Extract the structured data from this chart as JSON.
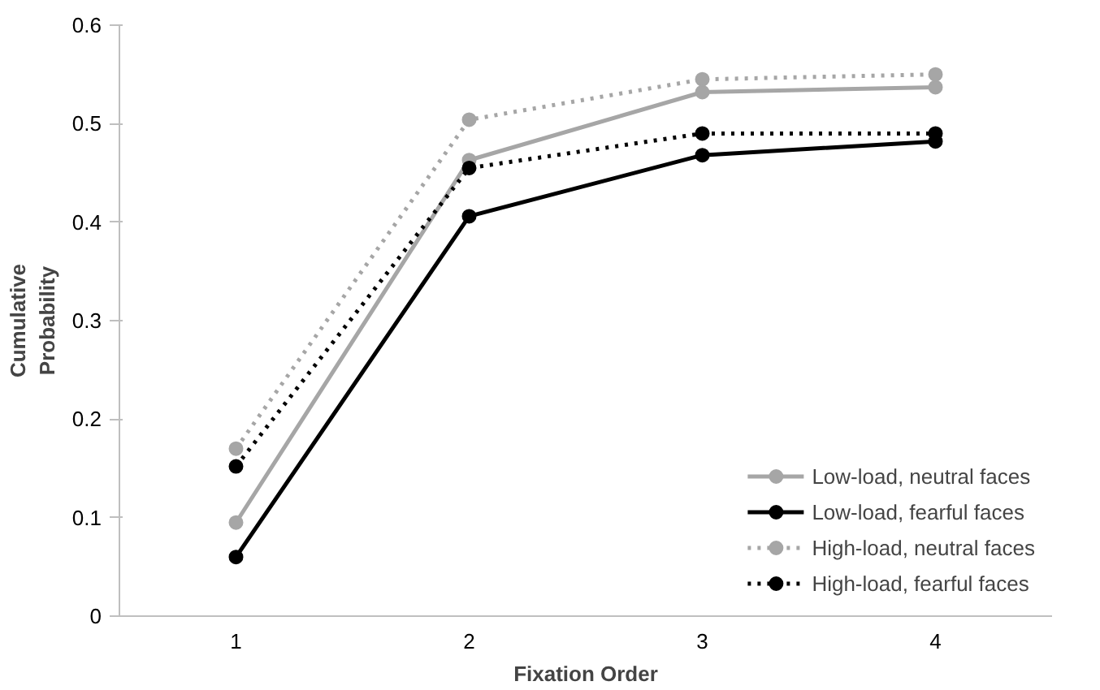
{
  "chart_data": {
    "type": "line",
    "xlabel": "Fixation Order",
    "ylabel": "Cumulative Probability",
    "categories": [
      "1",
      "2",
      "3",
      "4"
    ],
    "ylim": [
      0,
      0.6
    ],
    "yticks": [
      0,
      0.1,
      0.2,
      0.3,
      0.4,
      0.5,
      0.6
    ],
    "grid": false,
    "legend": "bottom right",
    "marker": "circle",
    "series": [
      {
        "name": "Low-load, neutral faces",
        "color": "#a6a6a6",
        "line_style": "solid",
        "values": [
          0.095,
          0.463,
          0.532,
          0.537
        ]
      },
      {
        "name": "Low-load, fearful faces",
        "color": "#000000",
        "line_style": "solid",
        "values": [
          0.06,
          0.406,
          0.468,
          0.482
        ]
      },
      {
        "name": "High-load, neutral faces",
        "color": "#a6a6a6",
        "line_style": "dotted",
        "values": [
          0.17,
          0.504,
          0.545,
          0.55
        ]
      },
      {
        "name": "High-load, fearful faces",
        "color": "#000000",
        "line_style": "dotted",
        "values": [
          0.152,
          0.455,
          0.49,
          0.49
        ]
      }
    ]
  }
}
